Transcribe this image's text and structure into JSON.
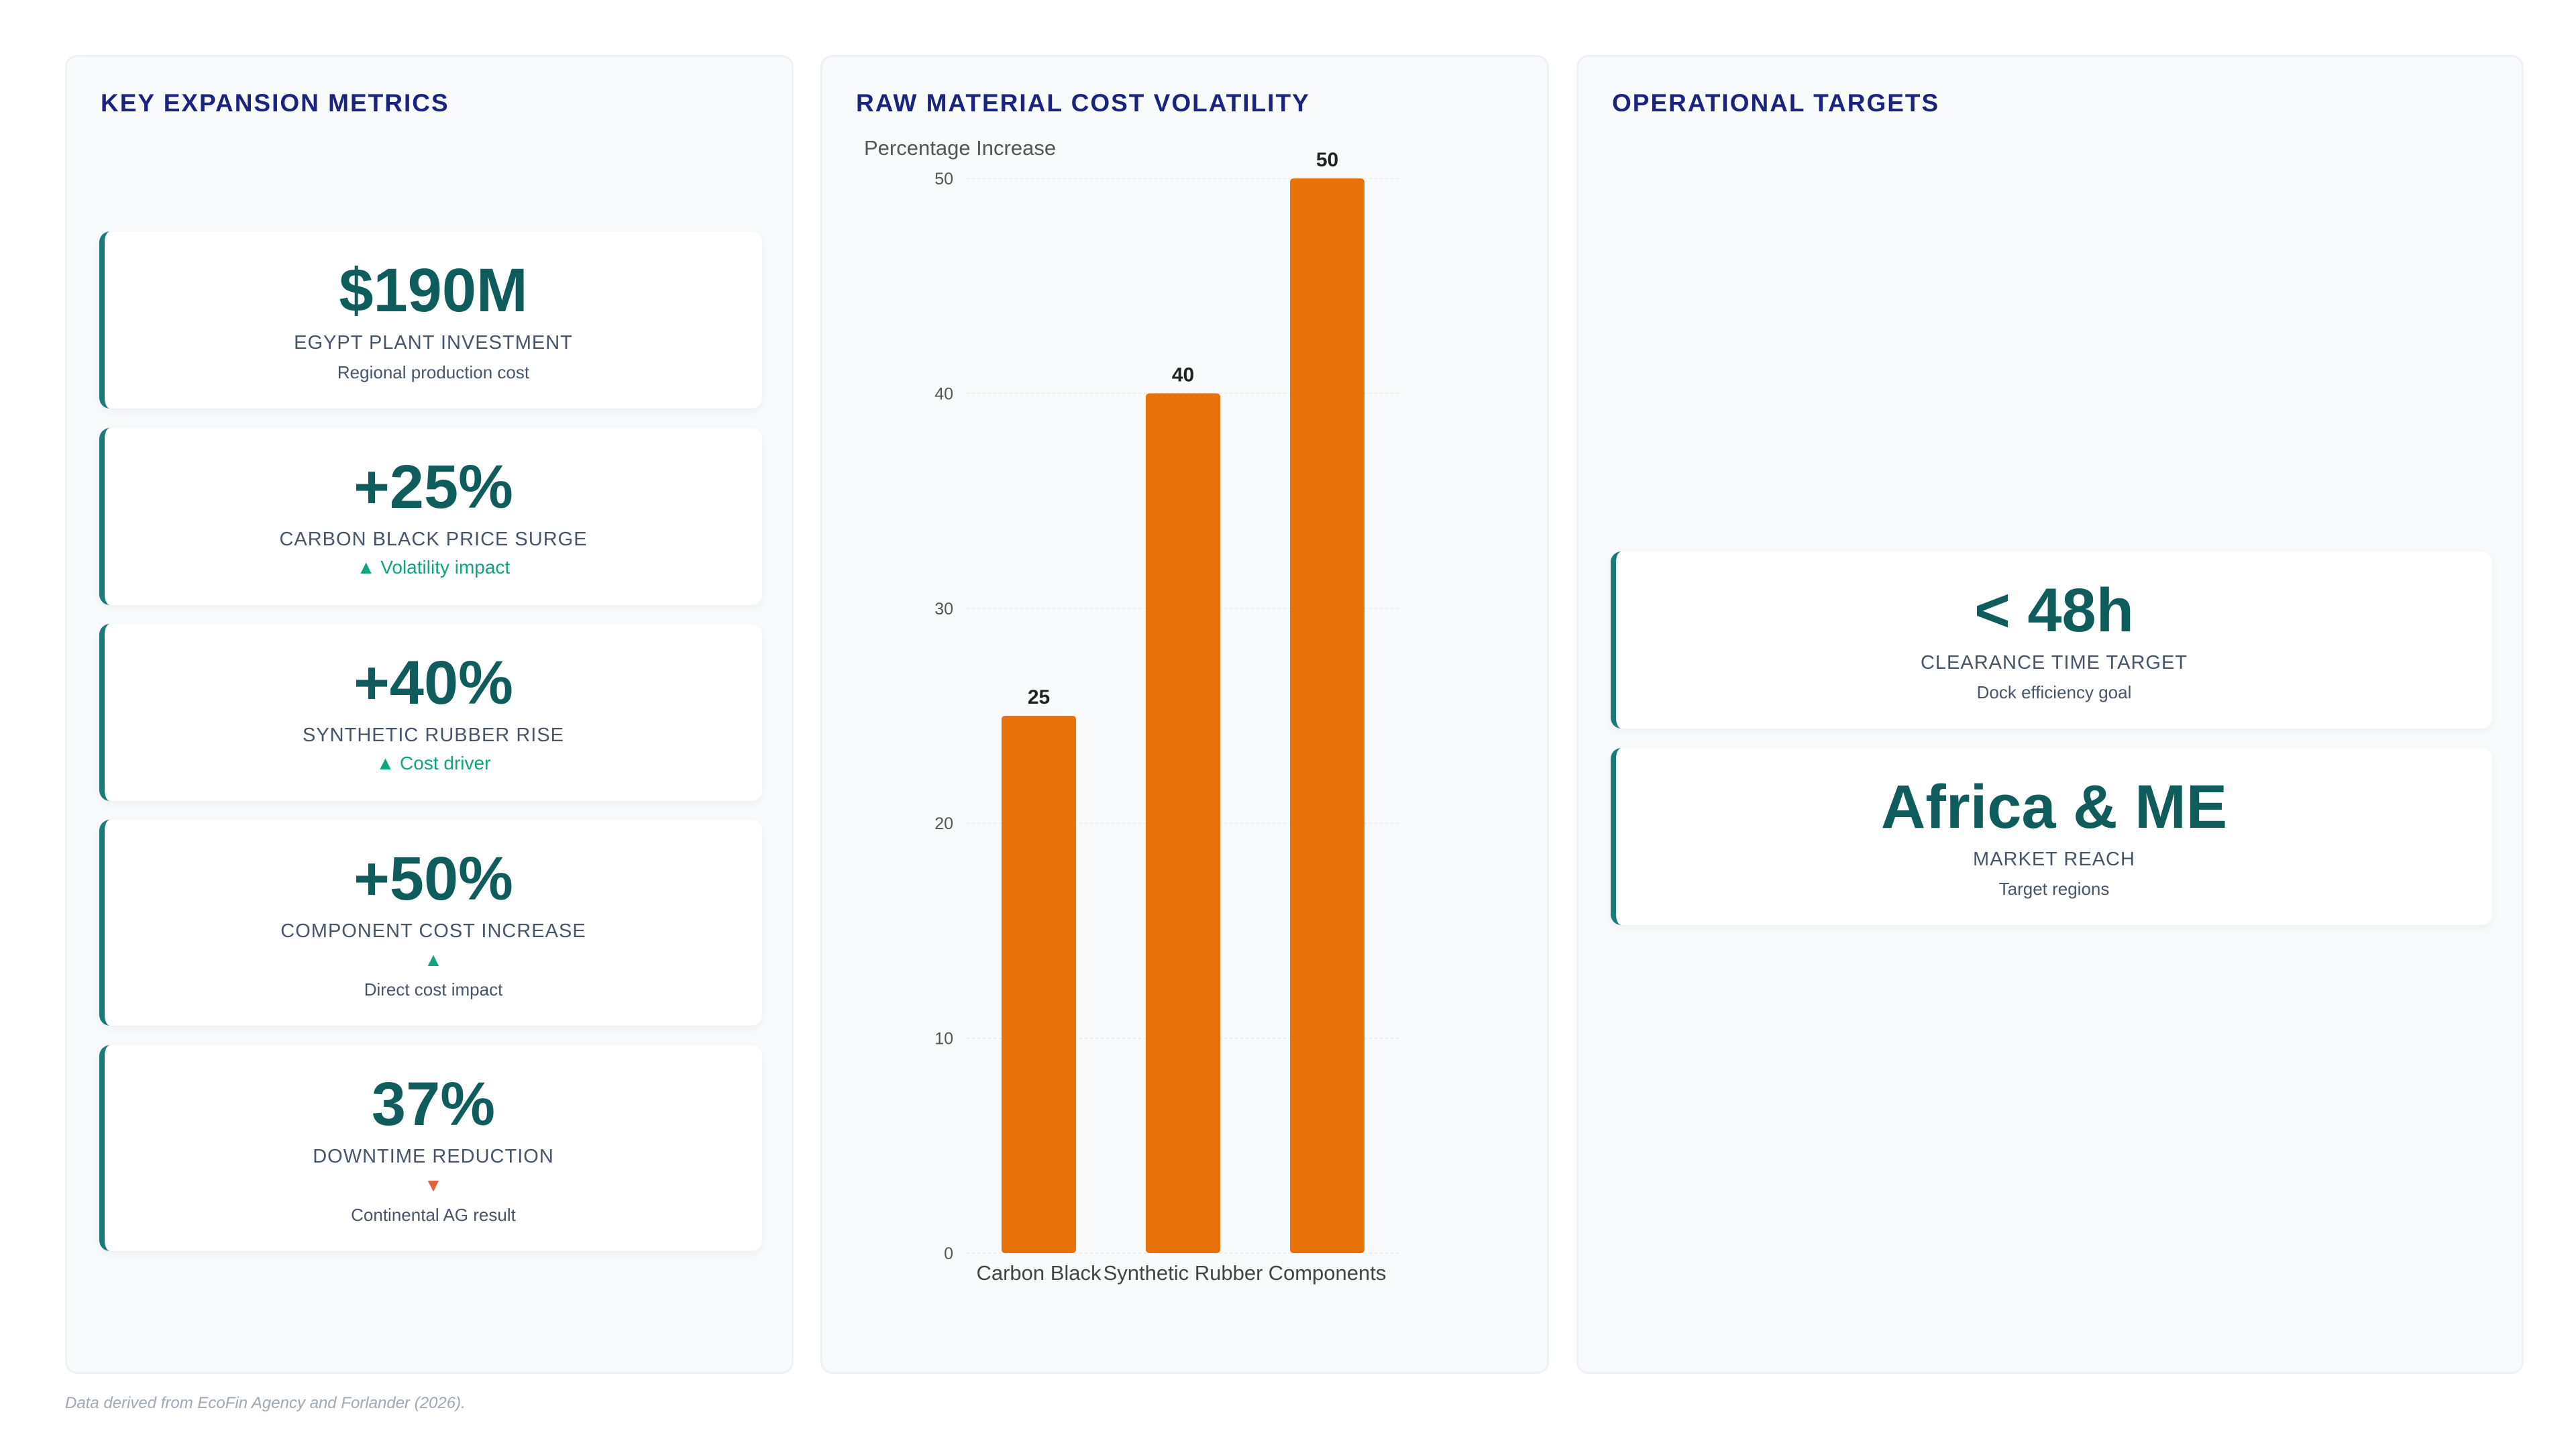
{
  "metrics_panel": {
    "title": "KEY EXPANSION METRICS",
    "cards": [
      {
        "value": "$190M",
        "label": "EGYPT PLANT INVESTMENT",
        "trend": "",
        "sub": "Regional production cost"
      },
      {
        "value": "+25%",
        "label": "CARBON BLACK PRICE SURGE",
        "trend": "▲ Volatility impact",
        "sub": ""
      },
      {
        "value": "+40%",
        "label": "SYNTHETIC RUBBER RISE",
        "trend": "▲ Cost driver",
        "sub": ""
      },
      {
        "value": "+50%",
        "label": "COMPONENT COST INCREASE",
        "trend": "▲",
        "sub": "Direct cost impact"
      },
      {
        "value": "37%",
        "label": "DOWNTIME REDUCTION",
        "trend": "▼",
        "sub": "Continental AG result"
      }
    ]
  },
  "chart_panel": {
    "title": "RAW MATERIAL COST VOLATILITY"
  },
  "chart_data": {
    "type": "bar",
    "title": "",
    "ylabel": "Percentage Increase",
    "xlabel": "",
    "categories": [
      "Carbon Black",
      "Synthetic Rubber",
      "Components"
    ],
    "values": [
      25,
      40,
      50
    ],
    "ylim": [
      0,
      50
    ],
    "yticks": [
      0,
      10,
      20,
      30,
      40,
      50
    ],
    "grid": true,
    "bar_color": "#e8710a",
    "data_labels": true
  },
  "targets_panel": {
    "title": "OPERATIONAL TARGETS",
    "cards": [
      {
        "value": "< 48h",
        "label": "CLEARANCE TIME TARGET",
        "sub": "Dock efficiency goal"
      },
      {
        "value": "Africa & ME",
        "label": "MARKET REACH",
        "sub": "Target regions"
      }
    ]
  },
  "footer": {
    "note": "Data derived from EcoFin Agency and Forlander (2026)."
  },
  "colors": {
    "accent_teal": "#1b7b7b",
    "value_text": "#0f5c5c",
    "title_navy": "#1a237e",
    "trend_up": "#10a37f",
    "trend_down": "#e0633a",
    "bar": "#e8710a"
  }
}
